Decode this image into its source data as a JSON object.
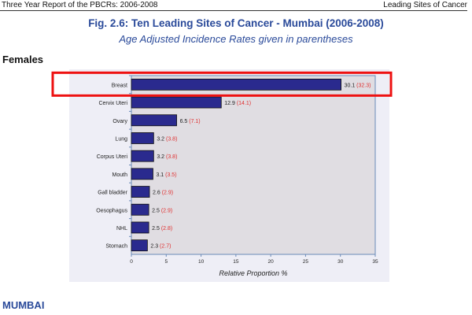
{
  "header": {
    "left": "Three Year Report of the PBCRs: 2006-2008",
    "right": "Leading Sites of Cancer"
  },
  "title": "Fig. 2.6: Ten Leading Sites of Cancer - Mumbai (2006-2008)",
  "subtitle": "Age Adjusted Incidence Rates given in parentheses",
  "section": "Females",
  "footer_section": "MUMBAI",
  "colors": {
    "bar": "#2a2a8e",
    "plot_bg": "#e0dde2",
    "panel_bg": "#eeeef6",
    "aar": "#e03030",
    "highlight": "#ee1111"
  },
  "chart_data": {
    "type": "bar",
    "orientation": "horizontal",
    "categories": [
      "Breast",
      "Cervix Uteri",
      "Ovary",
      "Lung",
      "Corpus Uteri",
      "Mouth",
      "Gall bladder",
      "Oesophagus",
      "NHL",
      "Stomach"
    ],
    "series": [
      {
        "name": "Relative Proportion",
        "values": [
          30.1,
          12.9,
          6.5,
          3.2,
          3.2,
          3.1,
          2.6,
          2.5,
          2.5,
          2.3
        ]
      },
      {
        "name": "Age Adjusted Incidence Rate",
        "values": [
          32.3,
          14.1,
          7.1,
          3.8,
          3.8,
          3.5,
          2.9,
          2.9,
          2.8,
          2.7
        ]
      }
    ],
    "xlabel": "Relative Proportion %",
    "xlim": [
      0,
      35
    ],
    "xticks": [
      0,
      5,
      10,
      15,
      20,
      25,
      30,
      35
    ],
    "highlighted_category": "Breast"
  }
}
